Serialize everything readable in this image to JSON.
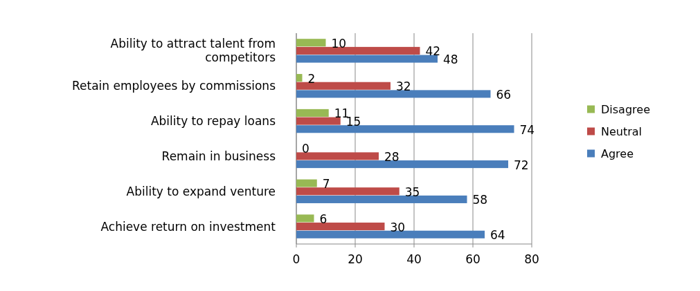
{
  "chart_data": {
    "type": "bar",
    "orientation": "horizontal",
    "categories": [
      "Ability to attract talent from competitors",
      "Retain employees by commissions",
      "Ability to repay loans",
      "Remain in business",
      "Ability to expand venture",
      "Achieve return on investment"
    ],
    "series": [
      {
        "name": "Agree",
        "color": "#4a7ebb",
        "values": [
          48,
          66,
          74,
          72,
          58,
          64
        ]
      },
      {
        "name": "Neutral",
        "color": "#be4b48",
        "values": [
          42,
          32,
          15,
          28,
          35,
          30
        ]
      },
      {
        "name": "Disagree",
        "color": "#98b954",
        "values": [
          10,
          2,
          11,
          0,
          7,
          6
        ]
      }
    ],
    "xlim": [
      0,
      80
    ],
    "xticks": [
      0,
      20,
      40,
      60,
      80
    ],
    "grid": "x",
    "legend": "right",
    "data_labels": true
  }
}
